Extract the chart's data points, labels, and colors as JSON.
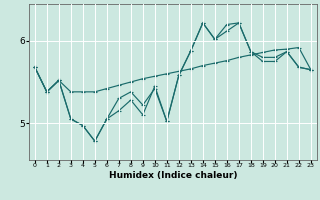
{
  "xlabel": "Humidex (Indice chaleur)",
  "x_values": [
    0,
    1,
    2,
    3,
    4,
    5,
    6,
    7,
    8,
    9,
    10,
    11,
    12,
    13,
    14,
    15,
    16,
    17,
    18,
    19,
    20,
    21,
    22,
    23
  ],
  "line_a": [
    5.68,
    5.38,
    5.52,
    5.38,
    5.38,
    5.38,
    5.42,
    5.46,
    5.5,
    5.54,
    5.57,
    5.6,
    5.63,
    5.66,
    5.7,
    5.73,
    5.76,
    5.8,
    5.83,
    5.86,
    5.89,
    5.9,
    5.92,
    5.65
  ],
  "line_b": [
    5.68,
    5.38,
    5.52,
    5.05,
    4.97,
    4.78,
    5.05,
    5.15,
    5.28,
    5.1,
    5.45,
    5.02,
    5.58,
    5.88,
    6.22,
    6.02,
    6.2,
    6.22,
    5.87,
    5.8,
    5.8,
    5.87,
    5.68,
    5.65
  ],
  "line_c": [
    5.68,
    5.38,
    5.52,
    5.05,
    4.97,
    4.78,
    5.05,
    5.3,
    5.38,
    5.22,
    5.42,
    5.02,
    5.58,
    5.88,
    6.22,
    6.02,
    6.12,
    6.22,
    5.87,
    5.75,
    5.75,
    5.87,
    5.68,
    5.65
  ],
  "bg_color": "#cce8e0",
  "line_color": "#1a6b6b",
  "grid_color": "#ffffff",
  "ylim": [
    4.55,
    6.45
  ],
  "yticks": [
    5,
    6
  ],
  "xtick_labels": [
    "0",
    "1",
    "2",
    "3",
    "4",
    "5",
    "6",
    "7",
    "8",
    "9",
    "10",
    "11",
    "12",
    "13",
    "14",
    "15",
    "16",
    "17",
    "18",
    "19",
    "20",
    "21",
    "22",
    "23"
  ]
}
